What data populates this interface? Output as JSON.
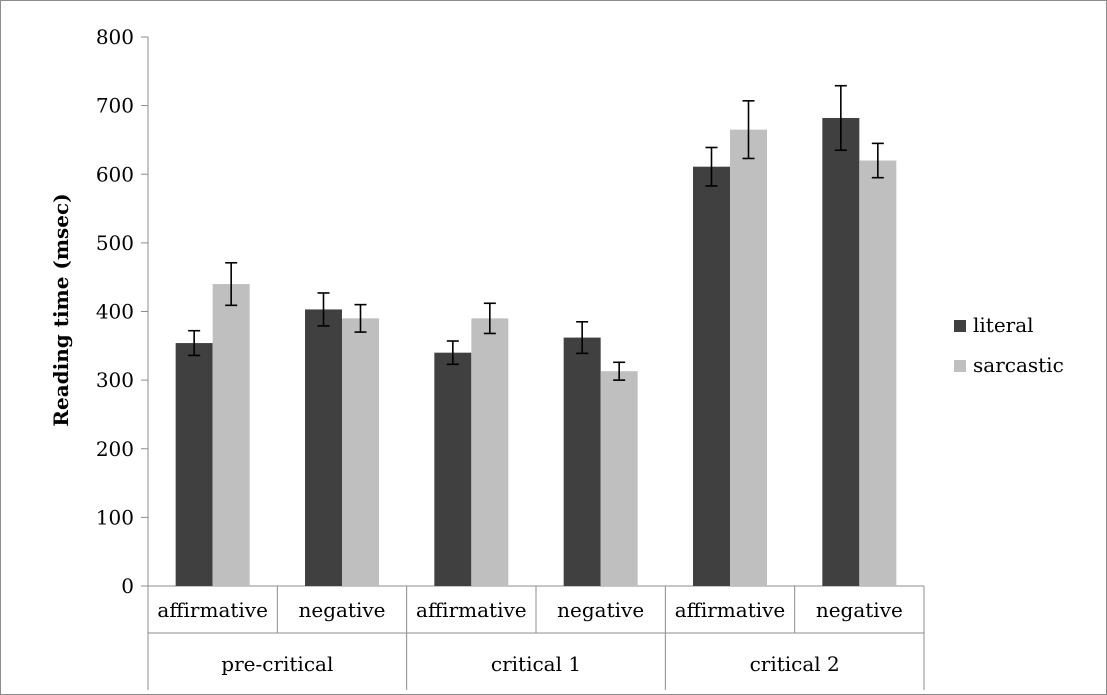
{
  "chart_data": {
    "type": "bar",
    "title": "",
    "xlabel": "",
    "ylabel": "Reading time (msec)",
    "ylim": [
      0,
      800
    ],
    "yticks": [
      0,
      100,
      200,
      300,
      400,
      500,
      600,
      700,
      800
    ],
    "grid": false,
    "legend_position": "right",
    "groups": [
      "pre-critical",
      "critical 1",
      "critical 2"
    ],
    "categories": [
      "affirmative",
      "negative",
      "affirmative",
      "negative",
      "affirmative",
      "negative"
    ],
    "series": [
      {
        "name": "literal",
        "color": "#404040",
        "values": [
          354,
          403,
          340,
          362,
          611,
          682
        ],
        "errors": [
          18,
          24,
          17,
          23,
          28,
          47
        ]
      },
      {
        "name": "sarcastic",
        "color": "#bfbfbf",
        "values": [
          440,
          390,
          390,
          313,
          665,
          620
        ],
        "errors": [
          31,
          20,
          22,
          13,
          42,
          25
        ]
      }
    ]
  }
}
